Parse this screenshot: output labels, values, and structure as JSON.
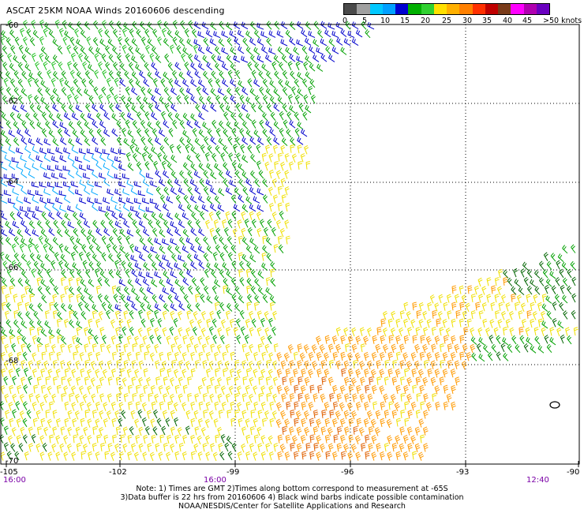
{
  "title": "ASCAT 25KM NOAA Winds 20160606 descending",
  "legend": {
    "unit_label": ">50 knots",
    "labels": [
      "0",
      "5",
      "10",
      "15",
      "20",
      "25",
      "30",
      "35",
      "40",
      "45"
    ],
    "colors": [
      "#4a4a4a",
      "#a0a0a0",
      "#00c8ff",
      "#00a0ff",
      "#0000d0",
      "#00b000",
      "#30d030",
      "#ffe000",
      "#ffb000",
      "#ff8000",
      "#ff3000",
      "#c00000",
      "#7a3b1a",
      "#ff00ff",
      "#b000b0",
      "#6a00c0"
    ]
  },
  "axes": {
    "lat_labels": [
      "-60",
      "-62",
      "-64",
      "-66",
      "-68",
      "-70"
    ],
    "lon_labels": [
      "-105",
      "-102",
      "-99",
      "-96",
      "-93",
      "-90"
    ],
    "time_labels": [
      "16:00",
      "16:00",
      "12:40"
    ]
  },
  "notes": {
    "line1": "Note: 1) Times are GMT 2)Times along bottom correspond to measurement at -65S",
    "line2": "3)Data buffer is 22 hrs from 20160606 4) Black wind barbs indicate possible contamination",
    "line3": "NOAA/NESDIS/Center for Satellite Applications and Research"
  },
  "wind_colors": {
    "calm_blue": "#00a8ff",
    "blue": "#0000cc",
    "green": "#00a000",
    "light_green": "#20c020",
    "yellow": "#f0e000",
    "orange": "#ff9a00",
    "dark_orange": "#e06000",
    "dark_green": "#006400",
    "contaminated": "#000000"
  }
}
